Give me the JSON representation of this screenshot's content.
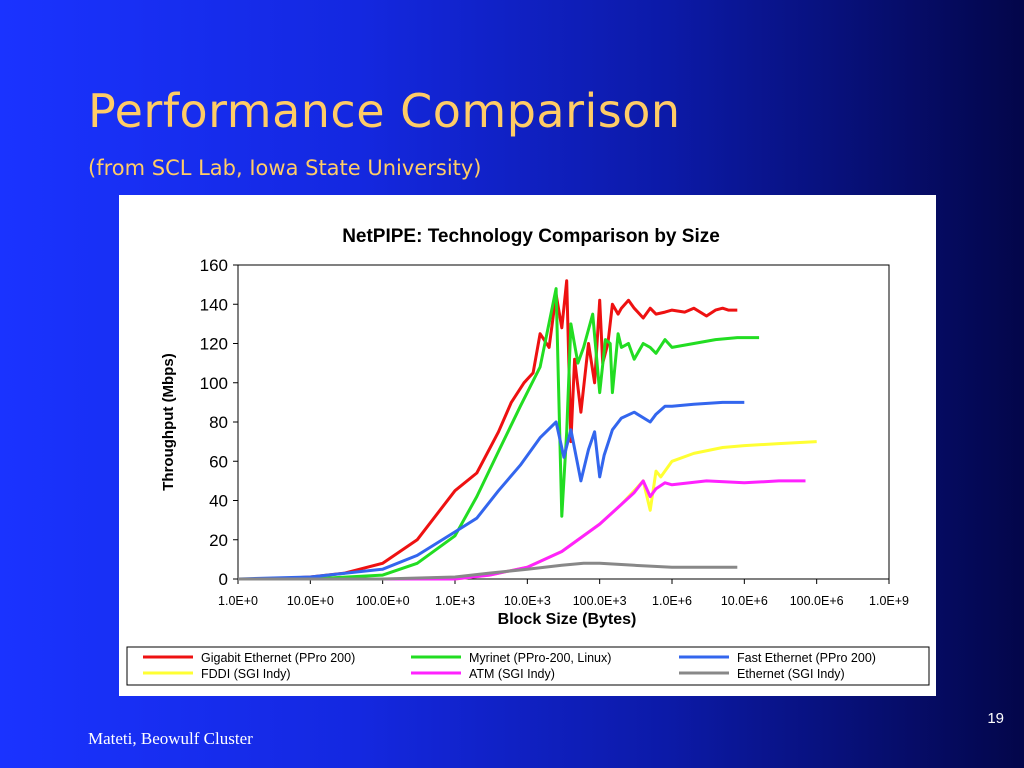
{
  "slide": {
    "title": "Performance Comparison",
    "subtitle": "(from SCL Lab, Iowa State University)",
    "footer": "Mateti, Beowulf Cluster",
    "page_number": "19",
    "colors": {
      "title": "#ffcc66",
      "background": "#1428e0"
    }
  },
  "chart_data": {
    "type": "line",
    "title": "NetPIPE: Technology Comparison by Size",
    "xlabel": "Block Size (Bytes)",
    "ylabel": "Throughput (Mbps)",
    "xscale": "log",
    "xlim": [
      1,
      1000000000
    ],
    "ylim": [
      0,
      160
    ],
    "xticks": [
      {
        "value": 1,
        "label": "1.0E+0"
      },
      {
        "value": 10,
        "label": "10.0E+0"
      },
      {
        "value": 100,
        "label": "100.0E+0"
      },
      {
        "value": 1000,
        "label": "1.0E+3"
      },
      {
        "value": 10000,
        "label": "10.0E+3"
      },
      {
        "value": 100000,
        "label": "100.0E+3"
      },
      {
        "value": 1000000,
        "label": "1.0E+6"
      },
      {
        "value": 10000000,
        "label": "10.0E+6"
      },
      {
        "value": 100000000,
        "label": "100.0E+6"
      },
      {
        "value": 1000000000,
        "label": "1.0E+9"
      }
    ],
    "yticks": [
      0,
      20,
      40,
      60,
      80,
      100,
      120,
      140,
      160
    ],
    "grid": false,
    "legend_position": "bottom",
    "series": [
      {
        "name": "Gigabit Ethernet (PPro 200)",
        "color": "#ee1111",
        "x": [
          1,
          3,
          10,
          30,
          100,
          300,
          1000,
          2000,
          4000,
          6000,
          9000,
          12000,
          15000,
          20000,
          25000,
          30000,
          35000,
          40000,
          45000,
          55000,
          70000,
          85000,
          100000,
          110000,
          130000,
          150000,
          180000,
          200000,
          250000,
          300000,
          400000,
          500000,
          600000,
          800000,
          1000000,
          1500000,
          2000000,
          3000000,
          4000000,
          5000000,
          6000000,
          8000000
        ],
        "y": [
          0,
          0,
          1,
          3,
          8,
          20,
          45,
          54,
          75,
          90,
          100,
          105,
          125,
          118,
          145,
          128,
          152,
          70,
          112,
          85,
          120,
          100,
          142,
          110,
          120,
          140,
          135,
          138,
          142,
          138,
          133,
          138,
          135,
          136,
          137,
          136,
          138,
          134,
          137,
          138,
          137,
          137
        ]
      },
      {
        "name": "Myrinet (PPro-200, Linux)",
        "color": "#22dd22",
        "x": [
          1,
          10,
          100,
          300,
          1000,
          2000,
          4000,
          8000,
          15000,
          25000,
          30000,
          35000,
          40000,
          50000,
          60000,
          80000,
          100000,
          120000,
          140000,
          150000,
          180000,
          200000,
          250000,
          300000,
          400000,
          500000,
          600000,
          800000,
          1000000,
          2000000,
          4000000,
          8000000,
          16000000
        ],
        "y": [
          0,
          0,
          2,
          8,
          22,
          42,
          65,
          88,
          108,
          148,
          32,
          75,
          130,
          110,
          118,
          135,
          95,
          122,
          120,
          95,
          125,
          118,
          120,
          112,
          120,
          118,
          115,
          122,
          118,
          120,
          122,
          123,
          123
        ]
      },
      {
        "name": "Fast Ethernet (PPro 200)",
        "color": "#3366ee",
        "x": [
          1,
          10,
          100,
          300,
          1000,
          2000,
          4000,
          8000,
          15000,
          25000,
          32000,
          40000,
          55000,
          70000,
          85000,
          100000,
          115000,
          150000,
          200000,
          300000,
          500000,
          600000,
          800000,
          1000000,
          2000000,
          5000000,
          10000000
        ],
        "y": [
          0,
          1,
          5,
          12,
          24,
          31,
          45,
          58,
          72,
          80,
          62,
          76,
          50,
          66,
          75,
          52,
          63,
          76,
          82,
          85,
          80,
          84,
          88,
          88,
          89,
          90,
          90
        ]
      },
      {
        "name": "FDDI (SGI Indy)",
        "color": "#ffff33",
        "x": [
          1,
          1000,
          3000,
          10000,
          30000,
          100000,
          200000,
          300000,
          400000,
          500000,
          600000,
          700000,
          1000000,
          2000000,
          5000000,
          10000000,
          30000000,
          100000000
        ],
        "y": [
          0,
          0,
          2,
          6,
          14,
          28,
          38,
          45,
          50,
          35,
          55,
          52,
          60,
          64,
          67,
          68,
          69,
          70
        ]
      },
      {
        "name": "ATM (SGI Indy)",
        "color": "#ff22ff",
        "x": [
          1,
          1000,
          3000,
          10000,
          30000,
          100000,
          200000,
          300000,
          400000,
          500000,
          600000,
          800000,
          1000000,
          3000000,
          10000000,
          30000000,
          70000000
        ],
        "y": [
          0,
          0,
          2,
          6,
          14,
          28,
          38,
          44,
          50,
          42,
          46,
          49,
          48,
          50,
          49,
          50,
          50
        ]
      },
      {
        "name": "Ethernet (SGI Indy)",
        "color": "#888888",
        "x": [
          1,
          100,
          1000,
          3000,
          10000,
          30000,
          60000,
          100000,
          300000,
          1000000,
          3000000,
          8000000
        ],
        "y": [
          0,
          0,
          1,
          3,
          5,
          7,
          8,
          8,
          7,
          6,
          6,
          6
        ]
      }
    ]
  }
}
